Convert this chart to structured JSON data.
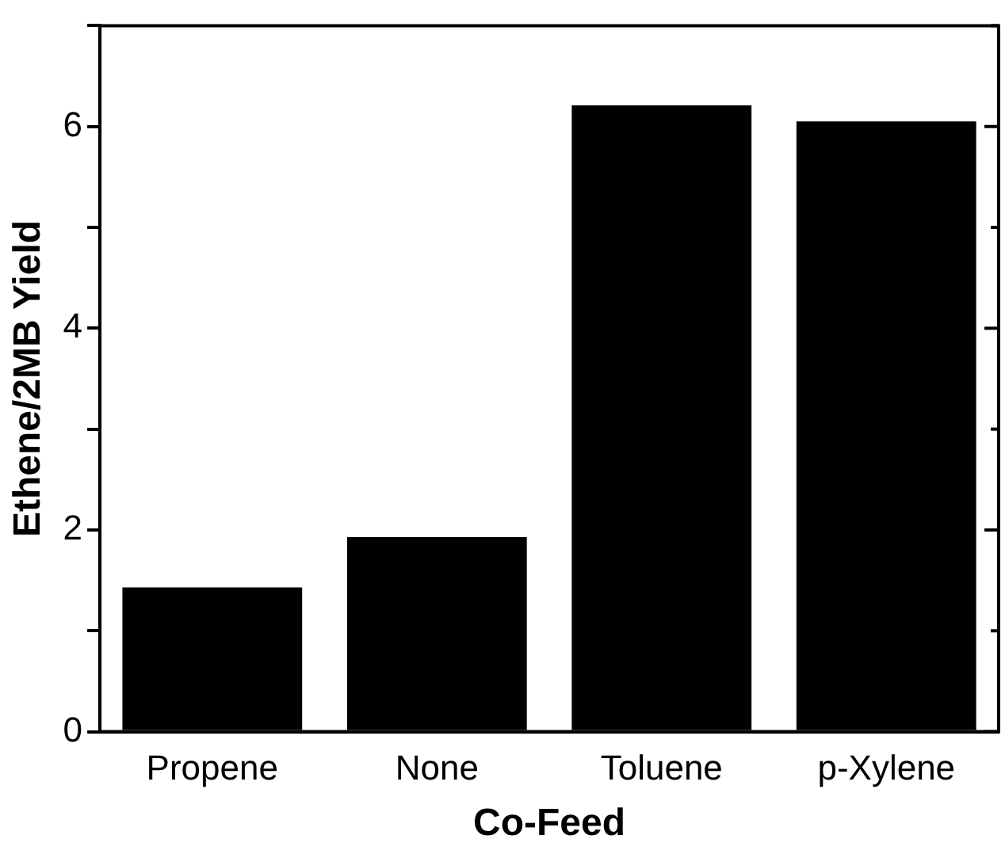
{
  "chart_data": {
    "type": "bar",
    "xlabel": "Co-Feed",
    "ylabel": "Ethene/2MB Yield",
    "categories": [
      "Propene",
      "None",
      "Toluene",
      "p-Xylene"
    ],
    "values": [
      1.43,
      1.93,
      6.21,
      6.05
    ],
    "color": "#000000",
    "ylim": [
      0,
      7
    ],
    "yticks": [
      0,
      {
        "value": 1,
        "label": null
      },
      2,
      {
        "value": 3,
        "label": null
      },
      4,
      {
        "value": 5,
        "label": null
      },
      6,
      {
        "value": 7,
        "label": null
      }
    ],
    "grid": false,
    "legend": false
  }
}
